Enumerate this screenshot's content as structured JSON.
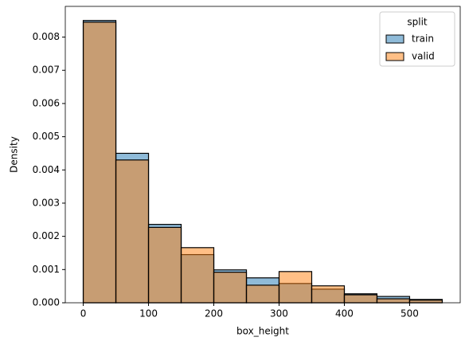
{
  "chart_data": {
    "type": "histogram",
    "xlabel": "box_height",
    "ylabel": "Density",
    "bins": [
      0,
      50,
      100,
      150,
      200,
      250,
      300,
      350,
      400,
      450,
      500,
      550
    ],
    "series": [
      {
        "name": "train",
        "color": "#1f77b4",
        "values": [
          0.0085,
          0.0045,
          0.00236,
          0.00145,
          0.00099,
          0.00075,
          0.00058,
          0.00041,
          0.00027,
          0.00019,
          0.0001
        ]
      },
      {
        "name": "valid",
        "color": "#ff7f0e",
        "values": [
          0.00845,
          0.0043,
          0.00227,
          0.00166,
          0.00092,
          0.00053,
          0.00094,
          0.00051,
          0.00024,
          0.00012,
          8e-05
        ]
      }
    ],
    "xlim": [
      -27.5,
      577.5
    ],
    "ylim": [
      0,
      0.008925
    ],
    "xticks": [
      0,
      100,
      200,
      300,
      400,
      500
    ],
    "yticks": [
      {
        "value": 0,
        "label": "0.000"
      },
      {
        "value": 0.001,
        "label": "0.001"
      },
      {
        "value": 0.002,
        "label": "0.002"
      },
      {
        "value": 0.003,
        "label": "0.003"
      },
      {
        "value": 0.004,
        "label": "0.004"
      },
      {
        "value": 0.005,
        "label": "0.005"
      },
      {
        "value": 0.006,
        "label": "0.006"
      },
      {
        "value": 0.007,
        "label": "0.007"
      },
      {
        "value": 0.008,
        "label": "0.008"
      }
    ],
    "legend_title": "split",
    "legend": "upper right",
    "alpha": 0.5
  }
}
